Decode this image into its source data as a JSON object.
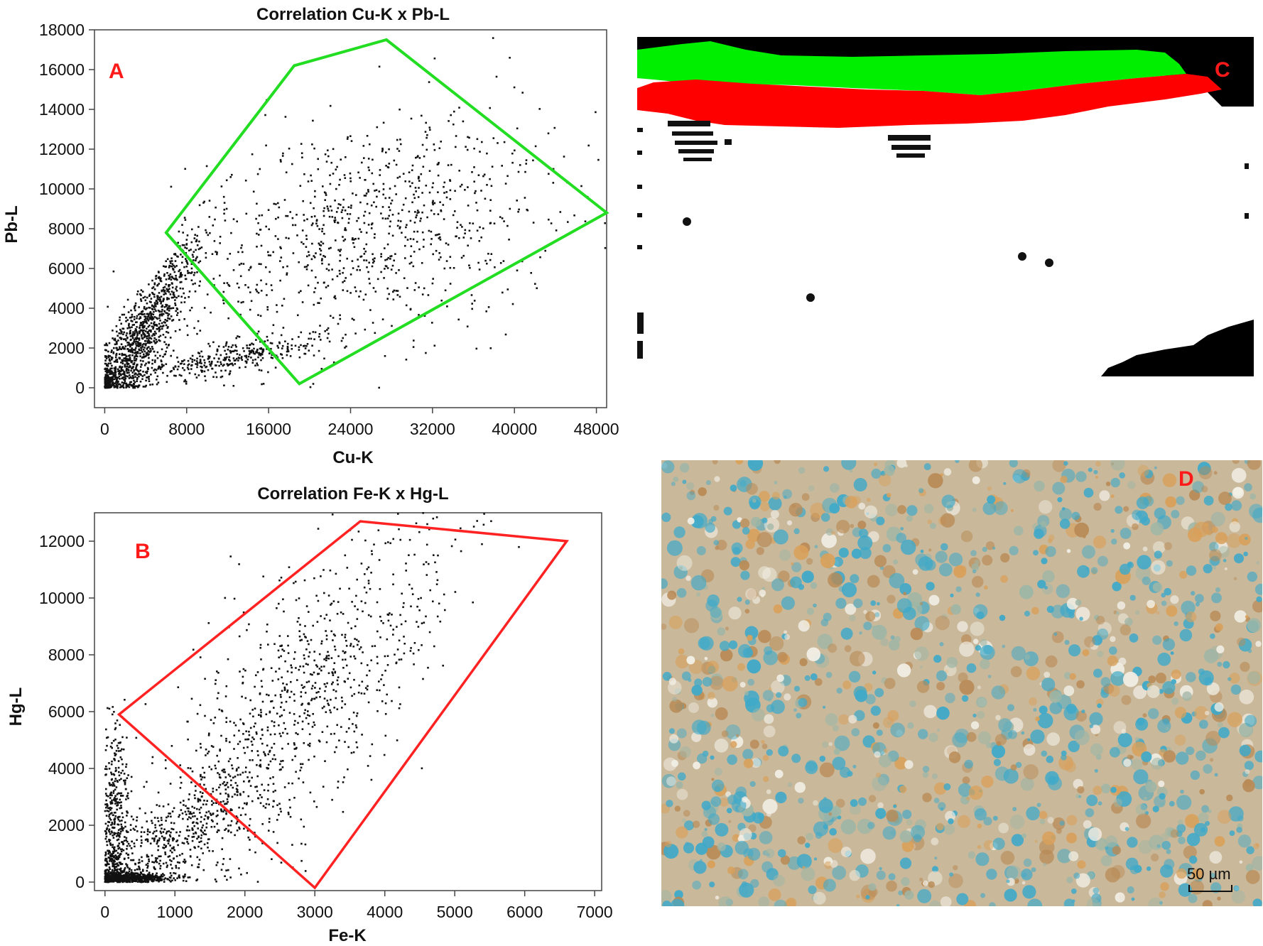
{
  "chart_data": [
    {
      "type": "scatter",
      "panel": "A",
      "title": "Correlation Cu-K x Pb-L",
      "xlabel": "Cu-K",
      "ylabel": "Pb-L",
      "xlim": [
        -1000,
        49000
      ],
      "ylim": [
        -1000,
        18000
      ],
      "xticks": [
        0,
        8000,
        16000,
        24000,
        32000,
        40000,
        48000
      ],
      "yticks": [
        0,
        2000,
        4000,
        6000,
        8000,
        10000,
        12000,
        14000,
        16000,
        18000
      ],
      "grid": false,
      "selection_polygon": {
        "color": "#22dd22",
        "vertices": [
          [
            6000,
            7800
          ],
          [
            18500,
            16200
          ],
          [
            27500,
            17500
          ],
          [
            49000,
            8800
          ],
          [
            19000,
            200
          ]
        ]
      },
      "clusters": [
        {
          "center": [
            2500,
            1500
          ],
          "spread": [
            2000,
            1200
          ],
          "count": 700,
          "slope": 0.45
        },
        {
          "center": [
            5000,
            4000
          ],
          "spread": [
            3000,
            1000
          ],
          "count": 500,
          "slope": 0.75
        },
        {
          "center": [
            12000,
            1500
          ],
          "spread": [
            5000,
            400
          ],
          "count": 350,
          "slope": 0.09
        },
        {
          "center": [
            26000,
            8000
          ],
          "spread": [
            9000,
            2800
          ],
          "count": 900,
          "slope": 0.12
        }
      ]
    },
    {
      "type": "scatter",
      "panel": "B",
      "title": "Correlation Fe-K x Hg-L",
      "xlabel": "Fe-K",
      "ylabel": "Hg-L",
      "xlim": [
        -150,
        7100
      ],
      "ylim": [
        -300,
        13000
      ],
      "xticks": [
        0,
        1000,
        2000,
        3000,
        4000,
        5000,
        6000,
        7000
      ],
      "yticks": [
        0,
        2000,
        4000,
        6000,
        8000,
        10000,
        12000
      ],
      "grid": false,
      "selection_polygon": {
        "color": "#ff2222",
        "vertices": [
          [
            200,
            5900
          ],
          [
            3650,
            12700
          ],
          [
            6600,
            12000
          ],
          [
            3000,
            -200
          ]
        ]
      },
      "clusters": [
        {
          "center": [
            350,
            150
          ],
          "spread": [
            300,
            80
          ],
          "count": 500,
          "slope": 0
        },
        {
          "center": [
            150,
            1800
          ],
          "spread": [
            100,
            1800
          ],
          "count": 450,
          "slope": 0
        },
        {
          "center": [
            900,
            1500
          ],
          "spread": [
            700,
            800
          ],
          "count": 500,
          "slope": 1.4
        },
        {
          "center": [
            2700,
            6200
          ],
          "spread": [
            1100,
            2200
          ],
          "count": 950,
          "slope": 2.1
        }
      ]
    }
  ],
  "panels": {
    "a_label": "A",
    "b_label": "B",
    "c_label": "C",
    "d_label": "D",
    "scale_bar": "50 µm"
  },
  "map_c": {
    "colors": {
      "green": "#00ee00",
      "red": "#ff0000",
      "black": "#000000"
    }
  },
  "micrograph_d": {
    "colors": {
      "base": "#c9b89a",
      "blue": "#3fa9c9",
      "orange": "#d9a05a",
      "white": "#f2efe6"
    }
  }
}
